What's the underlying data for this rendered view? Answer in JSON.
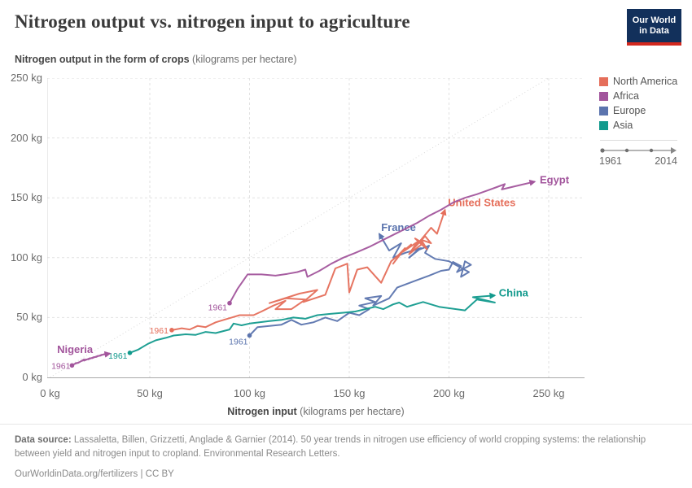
{
  "header": {
    "title": "Nitrogen output vs. nitrogen input to agriculture",
    "logo": {
      "line1": "Our World",
      "line2": "in Data"
    }
  },
  "subtitle": {
    "bold": "Nitrogen output in the form of crops",
    "rest": " (kilograms per hectare)"
  },
  "x_axis_title": {
    "bold": "Nitrogen input",
    "rest": " (kilograms per hectare)"
  },
  "footer": {
    "source_label": "Data source:",
    "source_text": " Lassaletta, Billen, Grizzetti, Anglade & Garnier (2014). 50 year trends in nitrogen use efficiency of world cropping systems: the relationship between yield and nitrogen input to cropland. Environmental Research Letters.",
    "link": "OurWorldinData.org/fertilizers",
    "separator": " | ",
    "license": "CC BY"
  },
  "chart_data": {
    "type": "scatter",
    "subtype": "connected-scatter",
    "title": "Nitrogen output vs. nitrogen input to agriculture",
    "xlabel": "Nitrogen input (kilograms per hectare)",
    "ylabel": "Nitrogen output in the form of crops (kilograms per hectare)",
    "xlim": [
      0,
      270
    ],
    "ylim": [
      0,
      250
    ],
    "grid": true,
    "diagonal_reference_line": true,
    "x_ticks": [
      {
        "value": 0,
        "label": "0 kg"
      },
      {
        "value": 50,
        "label": "50 kg"
      },
      {
        "value": 100,
        "label": "100 kg"
      },
      {
        "value": 150,
        "label": "150 kg"
      },
      {
        "value": 200,
        "label": "200 kg"
      },
      {
        "value": 250,
        "label": "250 kg"
      }
    ],
    "y_ticks": [
      {
        "value": 0,
        "label": "0 kg"
      },
      {
        "value": 50,
        "label": "50 kg"
      },
      {
        "value": 100,
        "label": "100 kg"
      },
      {
        "value": 150,
        "label": "150 kg"
      },
      {
        "value": 200,
        "label": "200 kg"
      },
      {
        "value": 250,
        "label": "250 kg"
      }
    ],
    "legend": {
      "position": "right",
      "entries": [
        {
          "label": "North America",
          "color": "#e56e5a"
        },
        {
          "label": "Africa",
          "color": "#a2559c"
        },
        {
          "label": "Europe",
          "color": "#5b74ae"
        },
        {
          "label": "Asia",
          "color": "#129a8d"
        }
      ]
    },
    "time_range": {
      "start": "1961",
      "end": "2014"
    },
    "series": [
      {
        "name": "France",
        "continent": "Europe",
        "color": "#5b74ae",
        "year_label": "1961",
        "year_dx": -2,
        "year_dy": 11,
        "label_x": 166,
        "label_y": 125.5,
        "points": [
          [
            100,
            35
          ],
          [
            104,
            42
          ],
          [
            110,
            43
          ],
          [
            116,
            44
          ],
          [
            121,
            48
          ],
          [
            126,
            44
          ],
          [
            132,
            46
          ],
          [
            138,
            50
          ],
          [
            144,
            47
          ],
          [
            150,
            54
          ],
          [
            155,
            52
          ],
          [
            160,
            57
          ],
          [
            155,
            60
          ],
          [
            163,
            63
          ],
          [
            158,
            66
          ],
          [
            166,
            68
          ],
          [
            162,
            60
          ],
          [
            170,
            66
          ],
          [
            174,
            75
          ],
          [
            182,
            80
          ],
          [
            190,
            85
          ],
          [
            196,
            89
          ],
          [
            200,
            90
          ],
          [
            202,
            96.5
          ],
          [
            206,
            93
          ],
          [
            204,
            88
          ],
          [
            211,
            94
          ],
          [
            208,
            97
          ],
          [
            206,
            84
          ],
          [
            210,
            88
          ],
          [
            200,
            97
          ],
          [
            193,
            99
          ],
          [
            188,
            104
          ],
          [
            190,
            110
          ],
          [
            184,
            106
          ],
          [
            180,
            100
          ],
          [
            186,
            108
          ],
          [
            178,
            104
          ],
          [
            172,
            100
          ],
          [
            176,
            112
          ],
          [
            170,
            106
          ],
          [
            165,
            120
          ]
        ]
      },
      {
        "name": "United States",
        "continent": "North America",
        "color": "#e56e5a",
        "year_label": "1961",
        "year_dx": -4,
        "year_dy": 4,
        "label_x": 199.5,
        "label_y": 146,
        "points": [
          [
            61,
            39.5
          ],
          [
            66,
            41
          ],
          [
            70,
            40
          ],
          [
            74,
            43
          ],
          [
            78,
            42
          ],
          [
            83,
            46
          ],
          [
            87,
            48
          ],
          [
            91,
            50
          ],
          [
            95,
            52
          ],
          [
            102,
            52
          ],
          [
            106,
            55
          ],
          [
            112,
            60
          ],
          [
            118,
            64
          ],
          [
            113,
            57
          ],
          [
            121,
            57
          ],
          [
            128,
            65
          ],
          [
            118,
            66
          ],
          [
            110,
            62
          ],
          [
            125,
            70
          ],
          [
            134,
            73
          ],
          [
            127,
            63
          ],
          [
            138,
            69
          ],
          [
            143,
            91
          ],
          [
            149,
            95
          ],
          [
            150,
            71
          ],
          [
            154,
            90
          ],
          [
            159,
            92
          ],
          [
            166,
            79
          ],
          [
            171,
            97
          ],
          [
            176,
            104
          ],
          [
            172,
            95
          ],
          [
            178,
            108
          ],
          [
            174,
            101
          ],
          [
            181,
            111
          ],
          [
            177,
            105
          ],
          [
            184,
            113
          ],
          [
            180,
            103
          ],
          [
            187,
            112
          ],
          [
            183,
            116
          ],
          [
            189,
            107
          ],
          [
            186,
            115
          ],
          [
            191,
            112
          ],
          [
            188,
            118
          ],
          [
            182,
            107
          ],
          [
            191,
            125
          ],
          [
            194,
            120
          ],
          [
            198,
            140
          ]
        ]
      },
      {
        "name": "China",
        "continent": "Asia",
        "color": "#129a8d",
        "year_label": "1961",
        "year_dx": -3,
        "year_dy": 7,
        "label_x": 225,
        "label_y": 70.5,
        "points": [
          [
            40,
            20.5
          ],
          [
            44,
            23
          ],
          [
            49,
            28
          ],
          [
            53,
            31
          ],
          [
            58,
            33
          ],
          [
            62,
            35
          ],
          [
            68,
            36
          ],
          [
            73,
            35.5
          ],
          [
            78,
            38
          ],
          [
            83,
            37
          ],
          [
            90,
            40
          ],
          [
            92,
            45
          ],
          [
            96,
            43.5
          ],
          [
            100,
            45
          ],
          [
            105,
            46
          ],
          [
            110,
            47
          ],
          [
            116,
            48
          ],
          [
            122,
            50
          ],
          [
            128,
            49
          ],
          [
            134,
            52
          ],
          [
            140,
            53
          ],
          [
            147,
            54
          ],
          [
            153,
            55
          ],
          [
            158,
            57
          ],
          [
            163,
            59
          ],
          [
            167,
            57
          ],
          [
            172,
            61
          ],
          [
            175,
            62.5
          ],
          [
            179,
            59
          ],
          [
            183,
            61
          ],
          [
            187,
            63
          ],
          [
            195,
            59
          ],
          [
            208,
            56
          ],
          [
            214,
            65
          ],
          [
            223,
            62.5
          ],
          [
            212,
            67
          ],
          [
            223,
            68.5
          ]
        ]
      },
      {
        "name": "Egypt",
        "continent": "Africa",
        "color": "#a2559c",
        "year_label": "1961",
        "year_dx": -3,
        "year_dy": 9,
        "label_x": 245.5,
        "label_y": 165,
        "points": [
          [
            90,
            62
          ],
          [
            94,
            74
          ],
          [
            99,
            86
          ],
          [
            106,
            86
          ],
          [
            113,
            85
          ],
          [
            119,
            86.5
          ],
          [
            124,
            88
          ],
          [
            128,
            90
          ],
          [
            129,
            84
          ],
          [
            135,
            89
          ],
          [
            141,
            95
          ],
          [
            147,
            100
          ],
          [
            153,
            104
          ],
          [
            160,
            109
          ],
          [
            166,
            114
          ],
          [
            172,
            119
          ],
          [
            178,
            124
          ],
          [
            184,
            129
          ],
          [
            190,
            135
          ],
          [
            196,
            140
          ],
          [
            202,
            146
          ],
          [
            208,
            150
          ],
          [
            214,
            153
          ],
          [
            219,
            156
          ],
          [
            224,
            159
          ],
          [
            228,
            161.5
          ],
          [
            226.5,
            157
          ],
          [
            234,
            160
          ],
          [
            243,
            163.5
          ]
        ]
      },
      {
        "name": "Nigeria",
        "continent": "Africa",
        "color": "#a2559c",
        "year_label": "1961",
        "year_dx": -2,
        "year_dy": 4,
        "label_x": 3.5,
        "label_y": 23.5,
        "points": [
          [
            11,
            10
          ],
          [
            13,
            12
          ],
          [
            12,
            11
          ],
          [
            15,
            13
          ],
          [
            14,
            12
          ],
          [
            17,
            15
          ],
          [
            15.5,
            13.5
          ],
          [
            18,
            15
          ],
          [
            17,
            14
          ],
          [
            20,
            16
          ],
          [
            19,
            15
          ],
          [
            22,
            17
          ],
          [
            21,
            16
          ],
          [
            24,
            18
          ],
          [
            23,
            17
          ],
          [
            26,
            19
          ],
          [
            25,
            18
          ],
          [
            28,
            20
          ],
          [
            27,
            19
          ],
          [
            30,
            20
          ]
        ]
      }
    ]
  }
}
